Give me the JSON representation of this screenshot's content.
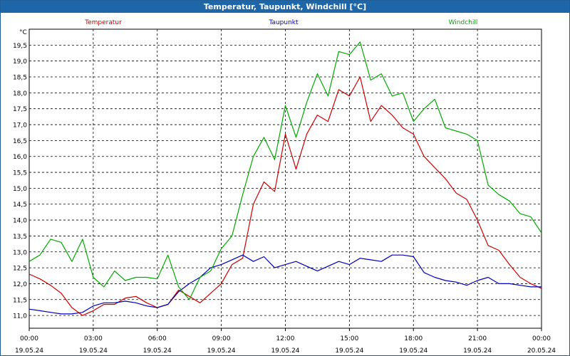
{
  "window": {
    "title": "Temperatur, Taupunkt, Windchill [°C]"
  },
  "chart_data": {
    "type": "line",
    "title": "Temperatur, Taupunkt, Windchill [°C]",
    "ylabel": "°C",
    "xlabel": "",
    "ylim": [
      10.6,
      20.0
    ],
    "xlim": [
      0,
      24
    ],
    "y_ticks": [
      "11,0",
      "11,5",
      "12,0",
      "12,5",
      "13,0",
      "13,5",
      "14,0",
      "14,5",
      "15,0",
      "15,5",
      "16,0",
      "16,5",
      "17,0",
      "17,5",
      "18,0",
      "18,5",
      "19,0",
      "19,5"
    ],
    "x_ticks": [
      {
        "time": "00:00",
        "date": "19.05.24"
      },
      {
        "time": "03:00",
        "date": "19.05.24"
      },
      {
        "time": "06:00",
        "date": "19.05.24"
      },
      {
        "time": "09:00",
        "date": "19.05.24"
      },
      {
        "time": "12:00",
        "date": "19.05.24"
      },
      {
        "time": "15:00",
        "date": "19.05.24"
      },
      {
        "time": "18:00",
        "date": "19.05.24"
      },
      {
        "time": "21:00",
        "date": "19.05.24"
      },
      {
        "time": "00:00",
        "date": "20.05.24"
      }
    ],
    "grid": true,
    "legend_placement": "top",
    "series": [
      {
        "name": "Temperatur",
        "color": "#cc0000",
        "x": [
          0,
          0.5,
          1,
          1.5,
          2,
          2.5,
          3,
          3.5,
          4,
          4.5,
          5,
          5.5,
          6,
          6.5,
          7,
          7.5,
          8,
          8.5,
          9,
          9.5,
          10,
          10.5,
          11,
          11.5,
          12,
          12.5,
          13,
          13.5,
          14,
          14.5,
          15,
          15.5,
          16,
          16.5,
          17,
          17.5,
          18,
          18.5,
          19,
          19.5,
          20,
          20.5,
          21,
          21.5,
          22,
          22.5,
          23,
          23.5,
          24
        ],
        "values": [
          12.3,
          12.15,
          11.95,
          11.7,
          11.25,
          11.0,
          11.15,
          11.35,
          11.35,
          11.55,
          11.6,
          11.4,
          11.25,
          11.35,
          11.8,
          11.6,
          11.4,
          11.7,
          12.0,
          12.6,
          12.8,
          14.5,
          15.2,
          14.9,
          16.7,
          15.6,
          16.7,
          17.3,
          17.1,
          18.1,
          17.9,
          18.5,
          17.1,
          17.6,
          17.3,
          16.9,
          16.7,
          16.0,
          15.65,
          15.3,
          14.85,
          14.65,
          14.0,
          13.2,
          13.05,
          12.6,
          12.2,
          12.0,
          11.85
        ]
      },
      {
        "name": "Taupunkt",
        "color": "#0000bb",
        "x": [
          0,
          0.5,
          1,
          1.5,
          2,
          2.5,
          3,
          3.5,
          4,
          4.5,
          5,
          5.5,
          6,
          6.5,
          7,
          7.5,
          8,
          8.5,
          9,
          9.5,
          10,
          10.5,
          11,
          11.5,
          12,
          12.5,
          13,
          13.5,
          14,
          14.5,
          15,
          15.5,
          16,
          16.5,
          17,
          17.5,
          18,
          18.5,
          19,
          19.5,
          20,
          20.5,
          21,
          21.5,
          22,
          22.5,
          23,
          23.5,
          24
        ],
        "values": [
          11.2,
          11.15,
          11.1,
          11.05,
          11.05,
          11.1,
          11.3,
          11.4,
          11.4,
          11.45,
          11.4,
          11.3,
          11.25,
          11.35,
          11.75,
          12.0,
          12.2,
          12.5,
          12.6,
          12.75,
          12.9,
          12.7,
          12.85,
          12.5,
          12.6,
          12.7,
          12.55,
          12.4,
          12.55,
          12.7,
          12.6,
          12.8,
          12.75,
          12.7,
          12.9,
          12.9,
          12.85,
          12.35,
          12.2,
          12.1,
          12.05,
          11.95,
          12.1,
          12.2,
          12.0,
          12.0,
          11.95,
          11.9,
          11.9
        ]
      },
      {
        "name": "Windchill",
        "color": "#00aa00",
        "x": [
          0,
          0.5,
          1,
          1.5,
          2,
          2.5,
          3,
          3.5,
          4,
          4.5,
          5,
          5.5,
          6,
          6.5,
          7,
          7.5,
          8,
          8.5,
          9,
          9.5,
          10,
          10.5,
          11,
          11.5,
          12,
          12.5,
          13,
          13.5,
          14,
          14.5,
          15,
          15.5,
          16,
          16.5,
          17,
          17.5,
          18,
          18.5,
          19,
          19.5,
          20,
          20.5,
          21,
          21.5,
          22,
          22.5,
          23,
          23.5,
          24
        ],
        "values": [
          12.7,
          12.9,
          13.4,
          13.3,
          12.7,
          13.4,
          12.2,
          11.9,
          12.4,
          12.1,
          12.2,
          12.2,
          12.15,
          12.9,
          11.9,
          11.5,
          12.2,
          12.4,
          13.1,
          13.5,
          14.8,
          16.0,
          16.6,
          15.9,
          17.6,
          16.6,
          17.7,
          18.6,
          17.9,
          19.3,
          19.2,
          19.6,
          18.4,
          18.6,
          17.9,
          18.0,
          17.1,
          17.5,
          17.8,
          16.9,
          16.8,
          16.7,
          16.5,
          15.1,
          14.8,
          14.6,
          14.2,
          14.1,
          13.6
        ]
      }
    ]
  }
}
